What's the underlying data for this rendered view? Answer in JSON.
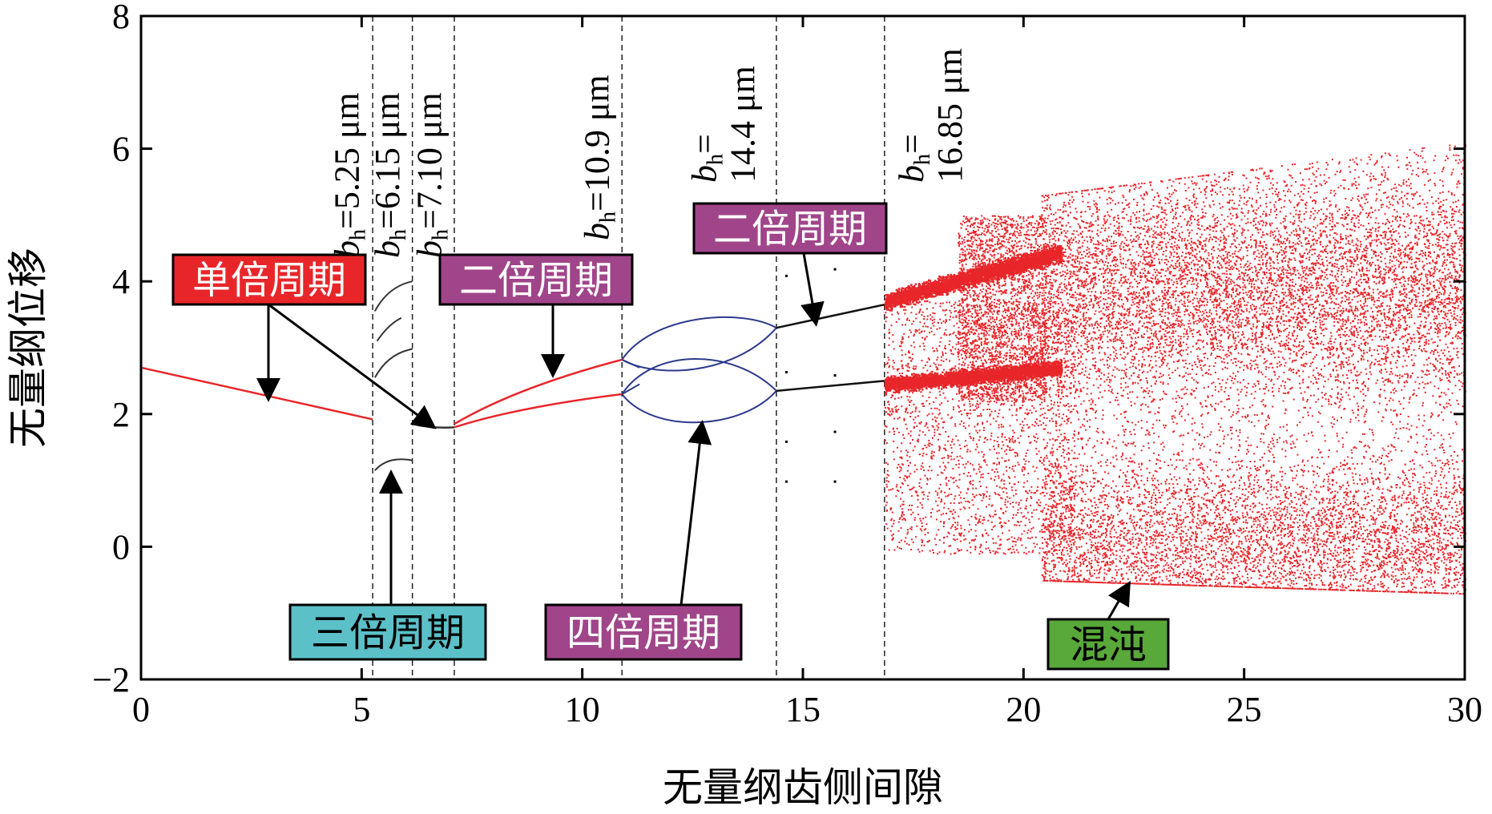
{
  "chart_data": {
    "type": "scatter",
    "xlabel": "无量纲齿侧间隙",
    "ylabel": "无量纲位移",
    "xlim": [
      0,
      30
    ],
    "ylim": [
      -2,
      8
    ],
    "xticks": [
      0,
      5,
      10,
      15,
      20,
      25,
      30
    ],
    "yticks": [
      -2,
      0,
      2,
      4,
      6,
      8
    ],
    "xtick_labels": [
      "0",
      "5",
      "10",
      "15",
      "20",
      "25",
      "30"
    ],
    "ytick_labels": [
      "−2",
      "0",
      "2",
      "4",
      "6",
      "8"
    ],
    "grid": false,
    "colors": {
      "period1": "#e8262a",
      "period3": "#333333",
      "period2_early": "#e8262a",
      "period4": "#2e3a8c",
      "period2_late": "#111111",
      "chaos": "#e8262a"
    },
    "vertical_lines": [
      {
        "x": 5.25,
        "label": "b_h=5.25 μm"
      },
      {
        "x": 6.15,
        "label": "b_h=6.15 μm"
      },
      {
        "x": 7.1,
        "label": "b_h=7.10 μm"
      },
      {
        "x": 10.9,
        "label": "b_h=10.9 μm"
      },
      {
        "x": 14.4,
        "label": "b_h=14.4 μm"
      },
      {
        "x": 16.85,
        "label": "b_h=16.85 μm"
      }
    ],
    "series": [
      {
        "regime": "period-1",
        "x": [
          0,
          5.25
        ],
        "y": [
          2.7,
          1.92
        ]
      },
      {
        "regime": "period-3",
        "x": [
          5.25,
          6.15
        ],
        "y_branches": [
          [
            1.15,
            1.28
          ],
          [
            2.55,
            2.95
          ],
          [
            3.55,
            4.0
          ]
        ]
      },
      {
        "regime": "period-1",
        "x": [
          6.15,
          7.1
        ],
        "y": [
          1.85,
          1.78
        ]
      },
      {
        "regime": "period-2",
        "x": [
          7.1,
          10.9
        ],
        "y_branches": [
          [
            1.85,
            2.8
          ],
          [
            1.8,
            2.3
          ]
        ]
      },
      {
        "regime": "period-4",
        "x": [
          10.9,
          14.4
        ],
        "y_branches": [
          [
            3.3,
            2.85,
            2.3,
            3.25
          ]
        ]
      },
      {
        "regime": "period-2",
        "x": [
          14.4,
          16.85
        ],
        "y_branches": [
          [
            3.3,
            3.65
          ],
          [
            2.35,
            2.5
          ]
        ]
      },
      {
        "regime": "chaos",
        "x": [
          16.85,
          30
        ],
        "y_range": [
          -0.7,
          6.1
        ]
      }
    ],
    "annotations": [
      {
        "text": "单倍周期",
        "bg": "#e8262a"
      },
      {
        "text": "二倍周期",
        "bg": "#a0458a"
      },
      {
        "text": "二倍周期",
        "bg": "#a0458a"
      },
      {
        "text": "三倍周期",
        "bg": "#5cc0c9"
      },
      {
        "text": "四倍周期",
        "bg": "#a0458a"
      },
      {
        "text": "混沌",
        "bg": "#58a83a"
      }
    ]
  }
}
